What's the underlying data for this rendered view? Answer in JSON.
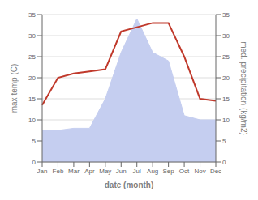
{
  "chart_data": {
    "type": "line",
    "xlabel": "date (month)",
    "ylabel": "max temp (C)",
    "y2label": "med. precipitation (kg/m2)",
    "categories": [
      "Jan",
      "Feb",
      "Mar",
      "Apr",
      "May",
      "Jun",
      "Jul",
      "Aug",
      "Sep",
      "Oct",
      "Nov",
      "Dec"
    ],
    "series": [
      {
        "type": "line",
        "color": "#c0392b",
        "values": [
          13.5,
          20,
          21,
          21.5,
          22,
          31,
          32,
          33,
          33,
          25,
          15,
          14.5
        ]
      },
      {
        "type": "area",
        "axis": "y2",
        "color": "#c5cef0",
        "values": [
          7.5,
          7.5,
          8,
          8,
          15,
          26,
          34,
          26,
          24,
          11,
          10,
          10
        ]
      }
    ],
    "ylim": [
      0,
      35
    ],
    "yticks": [
      0,
      5,
      10,
      15,
      20,
      25,
      30,
      35
    ],
    "y2lim": [
      0,
      35
    ],
    "y2ticks": [
      0,
      5,
      10,
      15,
      20,
      25,
      30,
      35
    ],
    "grid": true
  }
}
